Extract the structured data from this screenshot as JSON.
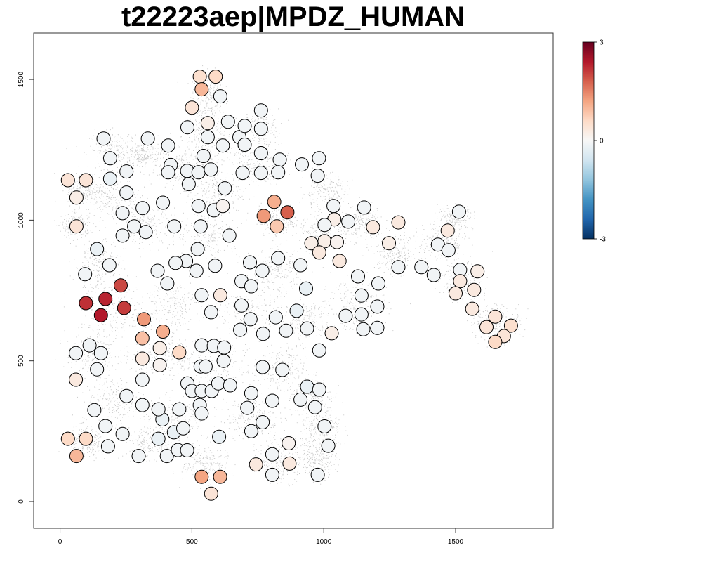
{
  "chart_data": {
    "type": "scatter",
    "title": "t22223aep|MPDZ_HUMAN",
    "xlabel": "",
    "ylabel": "",
    "xlim": [
      -100,
      1870
    ],
    "ylim": [
      -95,
      1665
    ],
    "x_ticks": [
      0,
      500,
      1000,
      1500
    ],
    "y_ticks": [
      0,
      500,
      1000,
      1500
    ],
    "grid": false,
    "colorbar": {
      "min": -3,
      "max": 3,
      "ticks": [
        3,
        0,
        -3
      ],
      "colors": [
        "#053061",
        "#2166ac",
        "#4393c3",
        "#92c5de",
        "#d1e5f0",
        "#f7f7f7",
        "#fddbc7",
        "#f4a582",
        "#d6604d",
        "#b2182b",
        "#67001f"
      ]
    },
    "background_points": {
      "description_free": true,
      "color": "#c8c8c8",
      "clusters": [
        [
          560,
          1440,
          60,
          80
        ],
        [
          560,
          1300,
          90,
          70
        ],
        [
          760,
          1330,
          60,
          60
        ],
        [
          730,
          1200,
          110,
          70
        ],
        [
          210,
          1250,
          90,
          60
        ],
        [
          320,
          1230,
          80,
          50
        ],
        [
          470,
          1180,
          90,
          60
        ],
        [
          90,
          1110,
          60,
          50
        ],
        [
          200,
          1080,
          90,
          70
        ],
        [
          580,
          1100,
          100,
          70
        ],
        [
          830,
          1000,
          70,
          50
        ],
        [
          1000,
          960,
          90,
          60
        ],
        [
          1150,
          990,
          70,
          50
        ],
        [
          1270,
          880,
          80,
          60
        ],
        [
          1450,
          920,
          80,
          60
        ],
        [
          1520,
          780,
          70,
          60
        ],
        [
          1650,
          640,
          90,
          60
        ],
        [
          140,
          840,
          80,
          80
        ],
        [
          320,
          980,
          90,
          60
        ],
        [
          560,
          950,
          110,
          80
        ],
        [
          820,
          820,
          90,
          70
        ],
        [
          1130,
          700,
          100,
          80
        ],
        [
          200,
          680,
          110,
          90
        ],
        [
          420,
          700,
          100,
          80
        ],
        [
          720,
          680,
          100,
          80
        ],
        [
          930,
          650,
          90,
          70
        ],
        [
          120,
          520,
          90,
          70
        ],
        [
          380,
          520,
          100,
          70
        ],
        [
          580,
          480,
          130,
          90
        ],
        [
          830,
          470,
          90,
          70
        ],
        [
          950,
          380,
          80,
          60
        ],
        [
          200,
          360,
          100,
          70
        ],
        [
          440,
          300,
          110,
          70
        ],
        [
          730,
          300,
          90,
          70
        ],
        [
          990,
          260,
          70,
          70
        ],
        [
          100,
          210,
          70,
          50
        ],
        [
          340,
          210,
          90,
          50
        ],
        [
          550,
          140,
          80,
          60
        ],
        [
          840,
          150,
          90,
          70
        ],
        [
          980,
          160,
          60,
          60
        ],
        [
          1000,
          1100,
          80,
          60
        ],
        [
          1500,
          1010,
          60,
          40
        ],
        [
          60,
          980,
          50,
          40
        ]
      ]
    },
    "points": [
      {
        "x": 30,
        "y": 1142,
        "v": 0.4
      },
      {
        "x": 98,
        "y": 1142,
        "v": 0.4
      },
      {
        "x": 62,
        "y": 1080,
        "v": 0.2
      },
      {
        "x": 62,
        "y": 978,
        "v": 0.4
      },
      {
        "x": 165,
        "y": 1290,
        "v": -0.1
      },
      {
        "x": 190,
        "y": 1220,
        "v": -0.1
      },
      {
        "x": 190,
        "y": 1147,
        "v": -0.2
      },
      {
        "x": 252,
        "y": 1173,
        "v": -0.1
      },
      {
        "x": 252,
        "y": 1098,
        "v": -0.1
      },
      {
        "x": 237,
        "y": 1025,
        "v": -0.1
      },
      {
        "x": 237,
        "y": 945,
        "v": -0.1
      },
      {
        "x": 281,
        "y": 978,
        "v": -0.1
      },
      {
        "x": 313,
        "y": 1043,
        "v": -0.1
      },
      {
        "x": 325,
        "y": 958,
        "v": -0.1
      },
      {
        "x": 333,
        "y": 1290,
        "v": -0.1
      },
      {
        "x": 410,
        "y": 1265,
        "v": -0.1
      },
      {
        "x": 420,
        "y": 1196,
        "v": -0.1
      },
      {
        "x": 410,
        "y": 1170,
        "v": -0.1
      },
      {
        "x": 390,
        "y": 1062,
        "v": -0.1
      },
      {
        "x": 433,
        "y": 978,
        "v": -0.1
      },
      {
        "x": 140,
        "y": 897,
        "v": -0.2
      },
      {
        "x": 95,
        "y": 808,
        "v": -0.1
      },
      {
        "x": 187,
        "y": 840,
        "v": -0.1
      },
      {
        "x": 230,
        "y": 768,
        "v": 2.0
      },
      {
        "x": 172,
        "y": 720,
        "v": 2.3
      },
      {
        "x": 98,
        "y": 705,
        "v": 2.2
      },
      {
        "x": 155,
        "y": 662,
        "v": 2.4
      },
      {
        "x": 243,
        "y": 688,
        "v": 2.1
      },
      {
        "x": 318,
        "y": 648,
        "v": 1.3
      },
      {
        "x": 390,
        "y": 604,
        "v": 1.1
      },
      {
        "x": 312,
        "y": 580,
        "v": 0.9
      },
      {
        "x": 378,
        "y": 545,
        "v": 0.2
      },
      {
        "x": 452,
        "y": 530,
        "v": 0.6
      },
      {
        "x": 312,
        "y": 508,
        "v": 0.3
      },
      {
        "x": 378,
        "y": 485,
        "v": 0.1
      },
      {
        "x": 60,
        "y": 527,
        "v": -0.1
      },
      {
        "x": 112,
        "y": 555,
        "v": -0.1
      },
      {
        "x": 155,
        "y": 527,
        "v": -0.1
      },
      {
        "x": 140,
        "y": 470,
        "v": -0.1
      },
      {
        "x": 60,
        "y": 433,
        "v": 0.3
      },
      {
        "x": 312,
        "y": 433,
        "v": -0.1
      },
      {
        "x": 252,
        "y": 375,
        "v": -0.1
      },
      {
        "x": 312,
        "y": 343,
        "v": -0.1
      },
      {
        "x": 130,
        "y": 325,
        "v": -0.1
      },
      {
        "x": 172,
        "y": 268,
        "v": -0.1
      },
      {
        "x": 237,
        "y": 240,
        "v": -0.1
      },
      {
        "x": 182,
        "y": 196,
        "v": -0.1
      },
      {
        "x": 30,
        "y": 223,
        "v": 0.6
      },
      {
        "x": 98,
        "y": 223,
        "v": 0.6
      },
      {
        "x": 62,
        "y": 162,
        "v": 1.0
      },
      {
        "x": 298,
        "y": 162,
        "v": -0.1
      },
      {
        "x": 373,
        "y": 223,
        "v": -0.2
      },
      {
        "x": 388,
        "y": 292,
        "v": -0.2
      },
      {
        "x": 373,
        "y": 328,
        "v": -0.1
      },
      {
        "x": 432,
        "y": 246,
        "v": -0.2
      },
      {
        "x": 452,
        "y": 328,
        "v": -0.1
      },
      {
        "x": 467,
        "y": 260,
        "v": -0.1
      },
      {
        "x": 405,
        "y": 162,
        "v": -0.1
      },
      {
        "x": 447,
        "y": 183,
        "v": -0.1
      },
      {
        "x": 482,
        "y": 182,
        "v": -0.1
      },
      {
        "x": 530,
        "y": 1510,
        "v": 0.5
      },
      {
        "x": 590,
        "y": 1510,
        "v": 0.6
      },
      {
        "x": 537,
        "y": 1465,
        "v": 1.0
      },
      {
        "x": 608,
        "y": 1440,
        "v": -0.1
      },
      {
        "x": 500,
        "y": 1400,
        "v": 0.4
      },
      {
        "x": 560,
        "y": 1345,
        "v": 0.2
      },
      {
        "x": 483,
        "y": 1330,
        "v": -0.1
      },
      {
        "x": 560,
        "y": 1295,
        "v": -0.1
      },
      {
        "x": 637,
        "y": 1350,
        "v": -0.1
      },
      {
        "x": 617,
        "y": 1265,
        "v": -0.1
      },
      {
        "x": 544,
        "y": 1228,
        "v": -0.1
      },
      {
        "x": 482,
        "y": 1175,
        "v": -0.1
      },
      {
        "x": 525,
        "y": 1170,
        "v": -0.1
      },
      {
        "x": 572,
        "y": 1180,
        "v": -0.1
      },
      {
        "x": 488,
        "y": 1128,
        "v": -0.1
      },
      {
        "x": 625,
        "y": 1113,
        "v": -0.1
      },
      {
        "x": 525,
        "y": 1050,
        "v": -0.1
      },
      {
        "x": 583,
        "y": 1035,
        "v": -0.1
      },
      {
        "x": 617,
        "y": 1050,
        "v": 0.1
      },
      {
        "x": 533,
        "y": 978,
        "v": -0.1
      },
      {
        "x": 642,
        "y": 945,
        "v": -0.1
      },
      {
        "x": 522,
        "y": 897,
        "v": -0.1
      },
      {
        "x": 478,
        "y": 855,
        "v": -0.1
      },
      {
        "x": 517,
        "y": 820,
        "v": -0.1
      },
      {
        "x": 438,
        "y": 848,
        "v": -0.1
      },
      {
        "x": 370,
        "y": 820,
        "v": -0.1
      },
      {
        "x": 407,
        "y": 775,
        "v": -0.1
      },
      {
        "x": 588,
        "y": 838,
        "v": -0.1
      },
      {
        "x": 537,
        "y": 733,
        "v": -0.1
      },
      {
        "x": 608,
        "y": 733,
        "v": 0.3
      },
      {
        "x": 573,
        "y": 673,
        "v": -0.1
      },
      {
        "x": 680,
        "y": 1295,
        "v": -0.1
      },
      {
        "x": 700,
        "y": 1335,
        "v": -0.1
      },
      {
        "x": 700,
        "y": 1268,
        "v": -0.1
      },
      {
        "x": 762,
        "y": 1390,
        "v": -0.1
      },
      {
        "x": 762,
        "y": 1325,
        "v": -0.1
      },
      {
        "x": 762,
        "y": 1238,
        "v": -0.1
      },
      {
        "x": 833,
        "y": 1215,
        "v": -0.1
      },
      {
        "x": 692,
        "y": 1168,
        "v": -0.1
      },
      {
        "x": 762,
        "y": 1168,
        "v": -0.1
      },
      {
        "x": 827,
        "y": 1170,
        "v": -0.1
      },
      {
        "x": 917,
        "y": 1198,
        "v": -0.1
      },
      {
        "x": 982,
        "y": 1220,
        "v": -0.1
      },
      {
        "x": 977,
        "y": 1158,
        "v": -0.1
      },
      {
        "x": 812,
        "y": 1065,
        "v": 1.1
      },
      {
        "x": 862,
        "y": 1028,
        "v": 1.8
      },
      {
        "x": 772,
        "y": 1015,
        "v": 1.3
      },
      {
        "x": 822,
        "y": 978,
        "v": 0.8
      },
      {
        "x": 827,
        "y": 865,
        "v": -0.1
      },
      {
        "x": 720,
        "y": 850,
        "v": -0.1
      },
      {
        "x": 767,
        "y": 820,
        "v": -0.1
      },
      {
        "x": 688,
        "y": 783,
        "v": -0.1
      },
      {
        "x": 725,
        "y": 765,
        "v": -0.1
      },
      {
        "x": 912,
        "y": 840,
        "v": -0.1
      },
      {
        "x": 933,
        "y": 757,
        "v": -0.2
      },
      {
        "x": 688,
        "y": 697,
        "v": -0.1
      },
      {
        "x": 722,
        "y": 648,
        "v": -0.1
      },
      {
        "x": 683,
        "y": 610,
        "v": -0.1
      },
      {
        "x": 770,
        "y": 596,
        "v": -0.1
      },
      {
        "x": 818,
        "y": 655,
        "v": -0.1
      },
      {
        "x": 897,
        "y": 678,
        "v": -0.2
      },
      {
        "x": 857,
        "y": 607,
        "v": -0.1
      },
      {
        "x": 937,
        "y": 615,
        "v": -0.1
      },
      {
        "x": 983,
        "y": 537,
        "v": -0.1
      },
      {
        "x": 1037,
        "y": 1050,
        "v": -0.1
      },
      {
        "x": 1093,
        "y": 995,
        "v": -0.1
      },
      {
        "x": 1040,
        "y": 1003,
        "v": 0.2
      },
      {
        "x": 1003,
        "y": 983,
        "v": -0.1
      },
      {
        "x": 1003,
        "y": 925,
        "v": 0.2
      },
      {
        "x": 953,
        "y": 918,
        "v": 0.2
      },
      {
        "x": 1050,
        "y": 922,
        "v": 0.1
      },
      {
        "x": 983,
        "y": 885,
        "v": 0.3
      },
      {
        "x": 1060,
        "y": 855,
        "v": 0.3
      },
      {
        "x": 1153,
        "y": 1045,
        "v": -0.1
      },
      {
        "x": 1187,
        "y": 975,
        "v": 0.3
      },
      {
        "x": 1247,
        "y": 918,
        "v": 0.2
      },
      {
        "x": 1283,
        "y": 992,
        "v": 0.3
      },
      {
        "x": 1283,
        "y": 833,
        "v": -0.1
      },
      {
        "x": 1130,
        "y": 800,
        "v": -0.1
      },
      {
        "x": 1207,
        "y": 775,
        "v": -0.1
      },
      {
        "x": 1143,
        "y": 732,
        "v": -0.1
      },
      {
        "x": 1203,
        "y": 693,
        "v": -0.1
      },
      {
        "x": 1083,
        "y": 660,
        "v": -0.1
      },
      {
        "x": 1143,
        "y": 665,
        "v": -0.1
      },
      {
        "x": 1150,
        "y": 612,
        "v": -0.1
      },
      {
        "x": 1203,
        "y": 617,
        "v": -0.1
      },
      {
        "x": 1030,
        "y": 598,
        "v": 0.2
      },
      {
        "x": 1370,
        "y": 833,
        "v": -0.1
      },
      {
        "x": 1433,
        "y": 913,
        "v": -0.1
      },
      {
        "x": 1470,
        "y": 963,
        "v": 0.3
      },
      {
        "x": 1473,
        "y": 893,
        "v": -0.1
      },
      {
        "x": 1513,
        "y": 1030,
        "v": -0.1
      },
      {
        "x": 1417,
        "y": 805,
        "v": -0.1
      },
      {
        "x": 1517,
        "y": 823,
        "v": -0.1
      },
      {
        "x": 1517,
        "y": 783,
        "v": 0.3
      },
      {
        "x": 1500,
        "y": 740,
        "v": 0.3
      },
      {
        "x": 1583,
        "y": 818,
        "v": 0.2
      },
      {
        "x": 1570,
        "y": 752,
        "v": 0.3
      },
      {
        "x": 1563,
        "y": 685,
        "v": 0.3
      },
      {
        "x": 1650,
        "y": 657,
        "v": 0.4
      },
      {
        "x": 1617,
        "y": 620,
        "v": 0.4
      },
      {
        "x": 1710,
        "y": 625,
        "v": 0.5
      },
      {
        "x": 1683,
        "y": 588,
        "v": 0.4
      },
      {
        "x": 1650,
        "y": 567,
        "v": 0.6
      },
      {
        "x": 537,
        "y": 555,
        "v": -0.1
      },
      {
        "x": 583,
        "y": 553,
        "v": -0.1
      },
      {
        "x": 622,
        "y": 547,
        "v": -0.1
      },
      {
        "x": 620,
        "y": 500,
        "v": -0.1
      },
      {
        "x": 533,
        "y": 480,
        "v": -0.1
      },
      {
        "x": 552,
        "y": 480,
        "v": -0.1
      },
      {
        "x": 483,
        "y": 420,
        "v": -0.1
      },
      {
        "x": 500,
        "y": 393,
        "v": -0.1
      },
      {
        "x": 537,
        "y": 393,
        "v": -0.1
      },
      {
        "x": 575,
        "y": 393,
        "v": -0.1
      },
      {
        "x": 600,
        "y": 420,
        "v": -0.1
      },
      {
        "x": 645,
        "y": 413,
        "v": -0.1
      },
      {
        "x": 530,
        "y": 343,
        "v": -0.1
      },
      {
        "x": 537,
        "y": 313,
        "v": -0.1
      },
      {
        "x": 603,
        "y": 230,
        "v": -0.2
      },
      {
        "x": 537,
        "y": 88,
        "v": 1.2
      },
      {
        "x": 607,
        "y": 88,
        "v": 1.0
      },
      {
        "x": 573,
        "y": 28,
        "v": 0.4
      },
      {
        "x": 710,
        "y": 333,
        "v": -0.1
      },
      {
        "x": 725,
        "y": 385,
        "v": -0.1
      },
      {
        "x": 768,
        "y": 478,
        "v": -0.1
      },
      {
        "x": 843,
        "y": 468,
        "v": -0.1
      },
      {
        "x": 805,
        "y": 358,
        "v": -0.1
      },
      {
        "x": 768,
        "y": 282,
        "v": -0.1
      },
      {
        "x": 725,
        "y": 250,
        "v": -0.1
      },
      {
        "x": 743,
        "y": 132,
        "v": 0.3
      },
      {
        "x": 805,
        "y": 168,
        "v": -0.1
      },
      {
        "x": 867,
        "y": 207,
        "v": 0.1
      },
      {
        "x": 870,
        "y": 135,
        "v": 0.3
      },
      {
        "x": 805,
        "y": 95,
        "v": -0.1
      },
      {
        "x": 937,
        "y": 408,
        "v": -0.2
      },
      {
        "x": 983,
        "y": 398,
        "v": -0.1
      },
      {
        "x": 912,
        "y": 362,
        "v": -0.1
      },
      {
        "x": 967,
        "y": 335,
        "v": -0.1
      },
      {
        "x": 1003,
        "y": 267,
        "v": -0.1
      },
      {
        "x": 1017,
        "y": 198,
        "v": -0.1
      },
      {
        "x": 977,
        "y": 95,
        "v": -0.1
      }
    ]
  }
}
